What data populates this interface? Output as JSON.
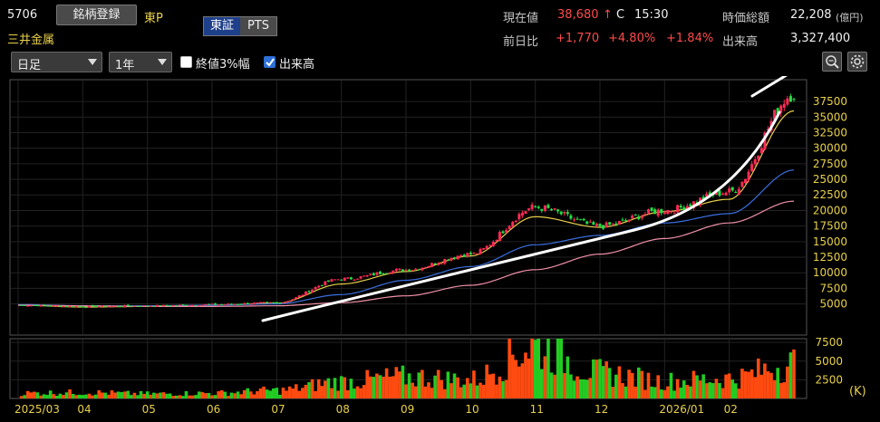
{
  "header": {
    "code": "5706",
    "watch_button": "銘柄登録",
    "market": "東P",
    "name": "三井金属",
    "exchange_tabs": [
      "東証",
      "PTS"
    ],
    "price_label": "現在値",
    "price": "38,680",
    "price_arrow": "↑",
    "price_flag": "C",
    "price_time": "15:30",
    "market_cap_label": "時価総額",
    "market_cap": "22,208",
    "market_cap_unit": "(億円)",
    "change_label": "前日比",
    "change": "+1,770",
    "change_pct": "+4.80%",
    "change_pct2": "+1.84%",
    "volume_label": "出来高",
    "volume": "3,327,400"
  },
  "toolbar": {
    "period_type": "日足",
    "range": "1年",
    "opt_3pct_label": "終値3%幅",
    "opt_3pct_checked": false,
    "opt_volume_label": "出来高",
    "opt_volume_checked": true,
    "zoom_icon": "zoom-icon",
    "settings_icon": "gear-icon"
  },
  "colors": {
    "up": "#ff2a55",
    "down": "#22dd44",
    "ma_short": "#e8d04a",
    "ma_mid": "#3a6fe0",
    "ma_long": "#f090a8",
    "trend_line": "#ffffff",
    "vol_up": "#ff4a10",
    "vol_down": "#22cc22"
  },
  "chart_data": [
    {
      "type": "line",
      "title": "",
      "ylim": [
        0,
        41000
      ],
      "y_ticks": [
        5000,
        7500,
        10000,
        12500,
        15000,
        17500,
        20000,
        22500,
        25000,
        27500,
        30000,
        32500,
        35000,
        37500
      ],
      "x_ticks": [
        "2025/03",
        "04",
        "05",
        "06",
        "07",
        "08",
        "09",
        "10",
        "11",
        "12",
        "2026/01",
        "02"
      ],
      "series": [
        {
          "role": "close",
          "x": [
            "2025/03",
            "04",
            "05",
            "06",
            "07",
            "08",
            "09",
            "10",
            "11",
            "12",
            "2026/01",
            "02",
            "03"
          ],
          "values": [
            4800,
            4600,
            4700,
            4900,
            5200,
            9000,
            10500,
            13000,
            20500,
            17500,
            20000,
            23000,
            38680
          ]
        },
        {
          "role": "ma_short",
          "x": [
            "2025/03",
            "04",
            "05",
            "06",
            "07",
            "08",
            "09",
            "10",
            "11",
            "12",
            "2026/01",
            "02",
            "03"
          ],
          "values": [
            4800,
            4500,
            4600,
            4800,
            5100,
            8200,
            10200,
            12700,
            19000,
            17300,
            19800,
            21800,
            36000
          ]
        },
        {
          "role": "ma_mid",
          "x": [
            "2025/03",
            "04",
            "05",
            "06",
            "07",
            "08",
            "09",
            "10",
            "11",
            "12",
            "2026/01",
            "02",
            "03"
          ],
          "values": [
            4900,
            4700,
            4700,
            4800,
            5000,
            6500,
            8800,
            11000,
            14500,
            16000,
            18000,
            19500,
            26500
          ]
        },
        {
          "role": "ma_long",
          "x": [
            "2025/03",
            "04",
            "05",
            "06",
            "07",
            "08",
            "09",
            "10",
            "11",
            "12",
            "2026/01",
            "02",
            "03"
          ],
          "values": [
            4800,
            4700,
            4600,
            4600,
            4700,
            5200,
            6300,
            8000,
            10500,
            13000,
            15500,
            18000,
            21500
          ]
        }
      ]
    },
    {
      "type": "bar",
      "title": "",
      "unit": "(K)",
      "ylim": [
        0,
        8000
      ],
      "y_ticks": [
        2500,
        5000,
        7500
      ],
      "categories": [
        "2025/03",
        "04",
        "05",
        "06",
        "07",
        "08",
        "09",
        "10",
        "11",
        "12",
        "2026/01",
        "02",
        "03"
      ],
      "values": [
        800,
        900,
        700,
        800,
        1200,
        2500,
        3200,
        2800,
        7800,
        3800,
        2600,
        3000,
        5200
      ]
    }
  ]
}
